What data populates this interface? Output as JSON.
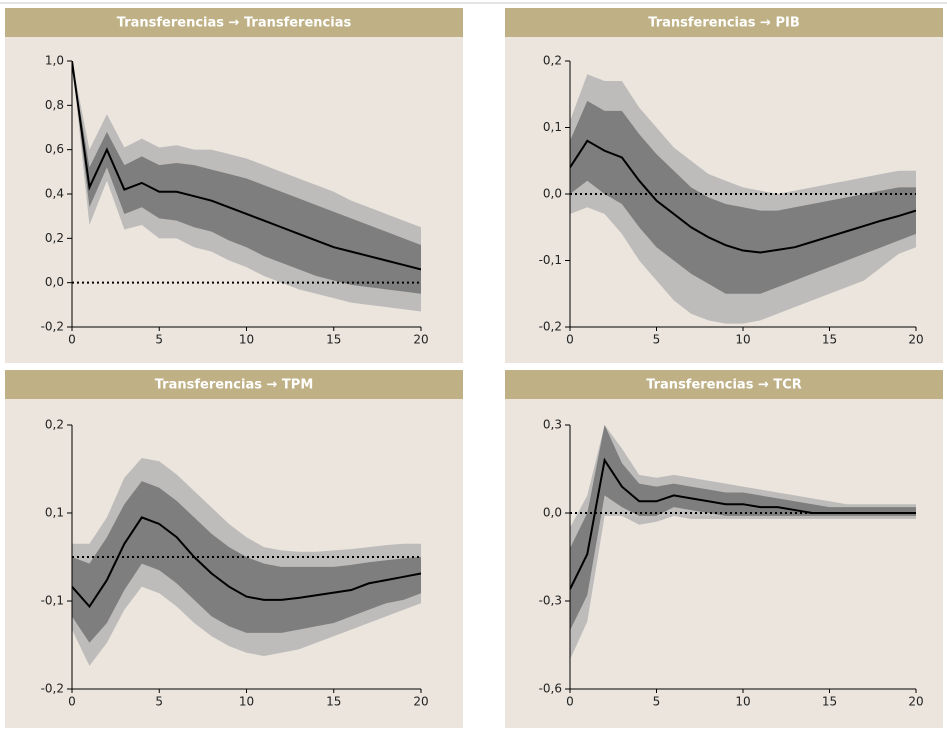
{
  "chart_data": [
    {
      "type": "line",
      "title": "Transferencias → Transferencias",
      "x": [
        0,
        1,
        2,
        3,
        4,
        5,
        6,
        7,
        8,
        9,
        10,
        11,
        12,
        13,
        14,
        15,
        16,
        17,
        18,
        19,
        20
      ],
      "xlim": [
        0,
        20
      ],
      "xticks": [
        0,
        5,
        10,
        15,
        20
      ],
      "ylim": [
        -0.2,
        1.0
      ],
      "yticks": [
        {
          "value": -0.2,
          "label": "-0,2"
        },
        {
          "value": 0,
          "label": "0,0"
        },
        {
          "value": 0.2,
          "label": "0,2"
        },
        {
          "value": 0.4,
          "label": "0,4"
        },
        {
          "value": 0.6,
          "label": "0,6"
        },
        {
          "value": 0.8,
          "label": "0,8"
        },
        {
          "value": 1.0,
          "label": "1,0"
        }
      ],
      "hline": 0,
      "bands": [
        {
          "color": "#bdbcbb",
          "upper": [
            1.0,
            0.6,
            0.76,
            0.61,
            0.65,
            0.61,
            0.62,
            0.6,
            0.6,
            0.58,
            0.56,
            0.53,
            0.5,
            0.47,
            0.44,
            0.41,
            0.37,
            0.34,
            0.31,
            0.28,
            0.25
          ],
          "lower": [
            1.0,
            0.26,
            0.46,
            0.24,
            0.26,
            0.2,
            0.2,
            0.16,
            0.14,
            0.1,
            0.07,
            0.03,
            0.0,
            -0.03,
            -0.05,
            -0.07,
            -0.09,
            -0.1,
            -0.11,
            -0.12,
            -0.13
          ]
        },
        {
          "color": "#7f7e7e",
          "upper": [
            1.0,
            0.52,
            0.68,
            0.53,
            0.57,
            0.53,
            0.54,
            0.53,
            0.51,
            0.49,
            0.47,
            0.44,
            0.41,
            0.38,
            0.35,
            0.32,
            0.29,
            0.26,
            0.23,
            0.2,
            0.17
          ],
          "lower": [
            1.0,
            0.34,
            0.52,
            0.31,
            0.34,
            0.29,
            0.28,
            0.25,
            0.23,
            0.19,
            0.16,
            0.12,
            0.09,
            0.06,
            0.03,
            0.01,
            -0.01,
            -0.02,
            -0.03,
            -0.04,
            -0.05
          ]
        }
      ],
      "series": [
        {
          "color": "#000000",
          "values": [
            1.0,
            0.43,
            0.6,
            0.42,
            0.45,
            0.41,
            0.41,
            0.39,
            0.37,
            0.34,
            0.31,
            0.28,
            0.25,
            0.22,
            0.19,
            0.16,
            0.14,
            0.12,
            0.1,
            0.08,
            0.06
          ]
        }
      ]
    },
    {
      "type": "line",
      "title": "Transferencias → PIB",
      "x": [
        0,
        1,
        2,
        3,
        4,
        5,
        6,
        7,
        8,
        9,
        10,
        11,
        12,
        13,
        14,
        15,
        16,
        17,
        18,
        19,
        20
      ],
      "xlim": [
        0,
        20
      ],
      "xticks": [
        0,
        5,
        10,
        15,
        20
      ],
      "ylim": [
        -0.2,
        0.2
      ],
      "yticks": [
        {
          "value": -0.2,
          "label": "-0,2"
        },
        {
          "value": -0.1,
          "label": "-0,1"
        },
        {
          "value": 0,
          "label": "0,0"
        },
        {
          "value": 0.1,
          "label": "0,1"
        },
        {
          "value": 0.2,
          "label": "0,2"
        }
      ],
      "hline": 0,
      "bands": [
        {
          "color": "#bdbcbb",
          "upper": [
            0.11,
            0.18,
            0.17,
            0.17,
            0.13,
            0.1,
            0.07,
            0.05,
            0.03,
            0.02,
            0.01,
            0.005,
            0.0,
            0.005,
            0.01,
            0.015,
            0.02,
            0.025,
            0.03,
            0.035,
            0.035
          ],
          "lower": [
            -0.03,
            -0.02,
            -0.03,
            -0.06,
            -0.1,
            -0.13,
            -0.16,
            -0.18,
            -0.19,
            -0.195,
            -0.195,
            -0.19,
            -0.18,
            -0.17,
            -0.16,
            -0.15,
            -0.14,
            -0.13,
            -0.11,
            -0.09,
            -0.08
          ]
        },
        {
          "color": "#7f7e7e",
          "upper": [
            0.08,
            0.14,
            0.125,
            0.125,
            0.09,
            0.06,
            0.035,
            0.01,
            -0.005,
            -0.015,
            -0.02,
            -0.025,
            -0.025,
            -0.02,
            -0.015,
            -0.01,
            -0.005,
            0.0,
            0.005,
            0.01,
            0.01
          ],
          "lower": [
            0.0,
            0.02,
            0.0,
            -0.015,
            -0.05,
            -0.08,
            -0.1,
            -0.12,
            -0.135,
            -0.15,
            -0.15,
            -0.15,
            -0.14,
            -0.13,
            -0.12,
            -0.11,
            -0.1,
            -0.09,
            -0.08,
            -0.07,
            -0.06
          ]
        }
      ],
      "series": [
        {
          "color": "#000000",
          "values": [
            0.04,
            0.08,
            0.065,
            0.055,
            0.02,
            -0.01,
            -0.03,
            -0.05,
            -0.065,
            -0.077,
            -0.085,
            -0.088,
            -0.084,
            -0.08,
            -0.072,
            -0.064,
            -0.056,
            -0.048,
            -0.04,
            -0.033,
            -0.025
          ]
        }
      ]
    },
    {
      "type": "line",
      "title": "Transferencias → TPM",
      "x": [
        0,
        1,
        2,
        3,
        4,
        5,
        6,
        7,
        8,
        9,
        10,
        11,
        12,
        13,
        14,
        15,
        16,
        17,
        18,
        19,
        20
      ],
      "xlim": [
        0,
        20
      ],
      "xticks": [
        0,
        5,
        10,
        15,
        20
      ],
      "ylim": [
        -0.2,
        0.2
      ],
      "yticks": [
        {
          "value": -0.2,
          "label": "-0,2"
        },
        {
          "value": -0.0667,
          "label": "-0,1"
        },
        {
          "value": 0.0667,
          "label": "0,1"
        },
        {
          "value": 0.2,
          "label": "0,2"
        }
      ],
      "hline": 0,
      "bands": [
        {
          "color": "#bdbcbb",
          "upper": [
            0.02,
            0.02,
            0.06,
            0.12,
            0.15,
            0.145,
            0.125,
            0.1,
            0.075,
            0.05,
            0.03,
            0.015,
            0.01,
            0.008,
            0.008,
            0.01,
            0.012,
            0.015,
            0.018,
            0.02,
            0.02
          ],
          "lower": [
            -0.11,
            -0.165,
            -0.13,
            -0.08,
            -0.045,
            -0.055,
            -0.075,
            -0.1,
            -0.12,
            -0.135,
            -0.145,
            -0.15,
            -0.145,
            -0.14,
            -0.13,
            -0.12,
            -0.11,
            -0.1,
            -0.09,
            -0.08,
            -0.07
          ]
        },
        {
          "color": "#7f7e7e",
          "upper": [
            0.0,
            -0.01,
            0.03,
            0.08,
            0.115,
            0.105,
            0.085,
            0.06,
            0.035,
            0.015,
            0.0,
            -0.01,
            -0.015,
            -0.015,
            -0.015,
            -0.015,
            -0.012,
            -0.008,
            -0.005,
            -0.002,
            0.0
          ],
          "lower": [
            -0.09,
            -0.13,
            -0.1,
            -0.05,
            -0.01,
            -0.02,
            -0.04,
            -0.065,
            -0.09,
            -0.105,
            -0.115,
            -0.115,
            -0.115,
            -0.11,
            -0.105,
            -0.1,
            -0.09,
            -0.08,
            -0.07,
            -0.065,
            -0.055
          ]
        }
      ],
      "series": [
        {
          "color": "#000000",
          "values": [
            -0.045,
            -0.075,
            -0.035,
            0.02,
            0.06,
            0.05,
            0.03,
            0.0,
            -0.025,
            -0.045,
            -0.06,
            -0.065,
            -0.065,
            -0.062,
            -0.058,
            -0.054,
            -0.05,
            -0.04,
            -0.035,
            -0.03,
            -0.025
          ]
        }
      ]
    },
    {
      "type": "line",
      "title": "Transferencias → TCR",
      "x": [
        0,
        1,
        2,
        3,
        4,
        5,
        6,
        7,
        8,
        9,
        10,
        11,
        12,
        13,
        14,
        15,
        16,
        17,
        18,
        19,
        20
      ],
      "xlim": [
        0,
        20
      ],
      "xticks": [
        0,
        5,
        10,
        15,
        20
      ],
      "ylim": [
        -0.6,
        0.3
      ],
      "yticks": [
        {
          "value": -0.6,
          "label": "-0,6"
        },
        {
          "value": -0.3,
          "label": "-0,3"
        },
        {
          "value": 0,
          "label": "0,0"
        },
        {
          "value": 0.3,
          "label": "0,3"
        }
      ],
      "hline": 0,
      "bands": [
        {
          "color": "#bdbcbb",
          "upper": [
            -0.05,
            0.06,
            0.3,
            0.22,
            0.13,
            0.12,
            0.13,
            0.12,
            0.11,
            0.1,
            0.09,
            0.08,
            0.07,
            0.06,
            0.05,
            0.04,
            0.03,
            0.03,
            0.03,
            0.03,
            0.03
          ],
          "lower": [
            -0.5,
            -0.37,
            -0.01,
            -0.01,
            -0.04,
            -0.03,
            -0.01,
            -0.02,
            -0.02,
            -0.02,
            -0.02,
            -0.02,
            -0.02,
            -0.02,
            -0.02,
            -0.02,
            -0.02,
            -0.02,
            -0.02,
            -0.02,
            -0.02
          ]
        },
        {
          "color": "#7f7e7e",
          "upper": [
            -0.12,
            0.0,
            0.3,
            0.17,
            0.1,
            0.09,
            0.1,
            0.09,
            0.08,
            0.07,
            0.07,
            0.06,
            0.05,
            0.04,
            0.03,
            0.02,
            0.02,
            0.02,
            0.02,
            0.02,
            0.02
          ],
          "lower": [
            -0.4,
            -0.28,
            0.06,
            0.02,
            -0.01,
            -0.01,
            0.02,
            0.01,
            0.0,
            -0.01,
            -0.01,
            -0.01,
            -0.01,
            -0.01,
            -0.01,
            -0.01,
            -0.01,
            -0.01,
            -0.01,
            -0.01,
            -0.01
          ]
        }
      ],
      "series": [
        {
          "color": "#000000",
          "values": [
            -0.26,
            -0.14,
            0.18,
            0.09,
            0.04,
            0.04,
            0.06,
            0.05,
            0.04,
            0.03,
            0.03,
            0.02,
            0.02,
            0.01,
            0.0,
            0.0,
            0.0,
            0.0,
            0.0,
            0.0,
            0.0
          ]
        }
      ]
    }
  ]
}
